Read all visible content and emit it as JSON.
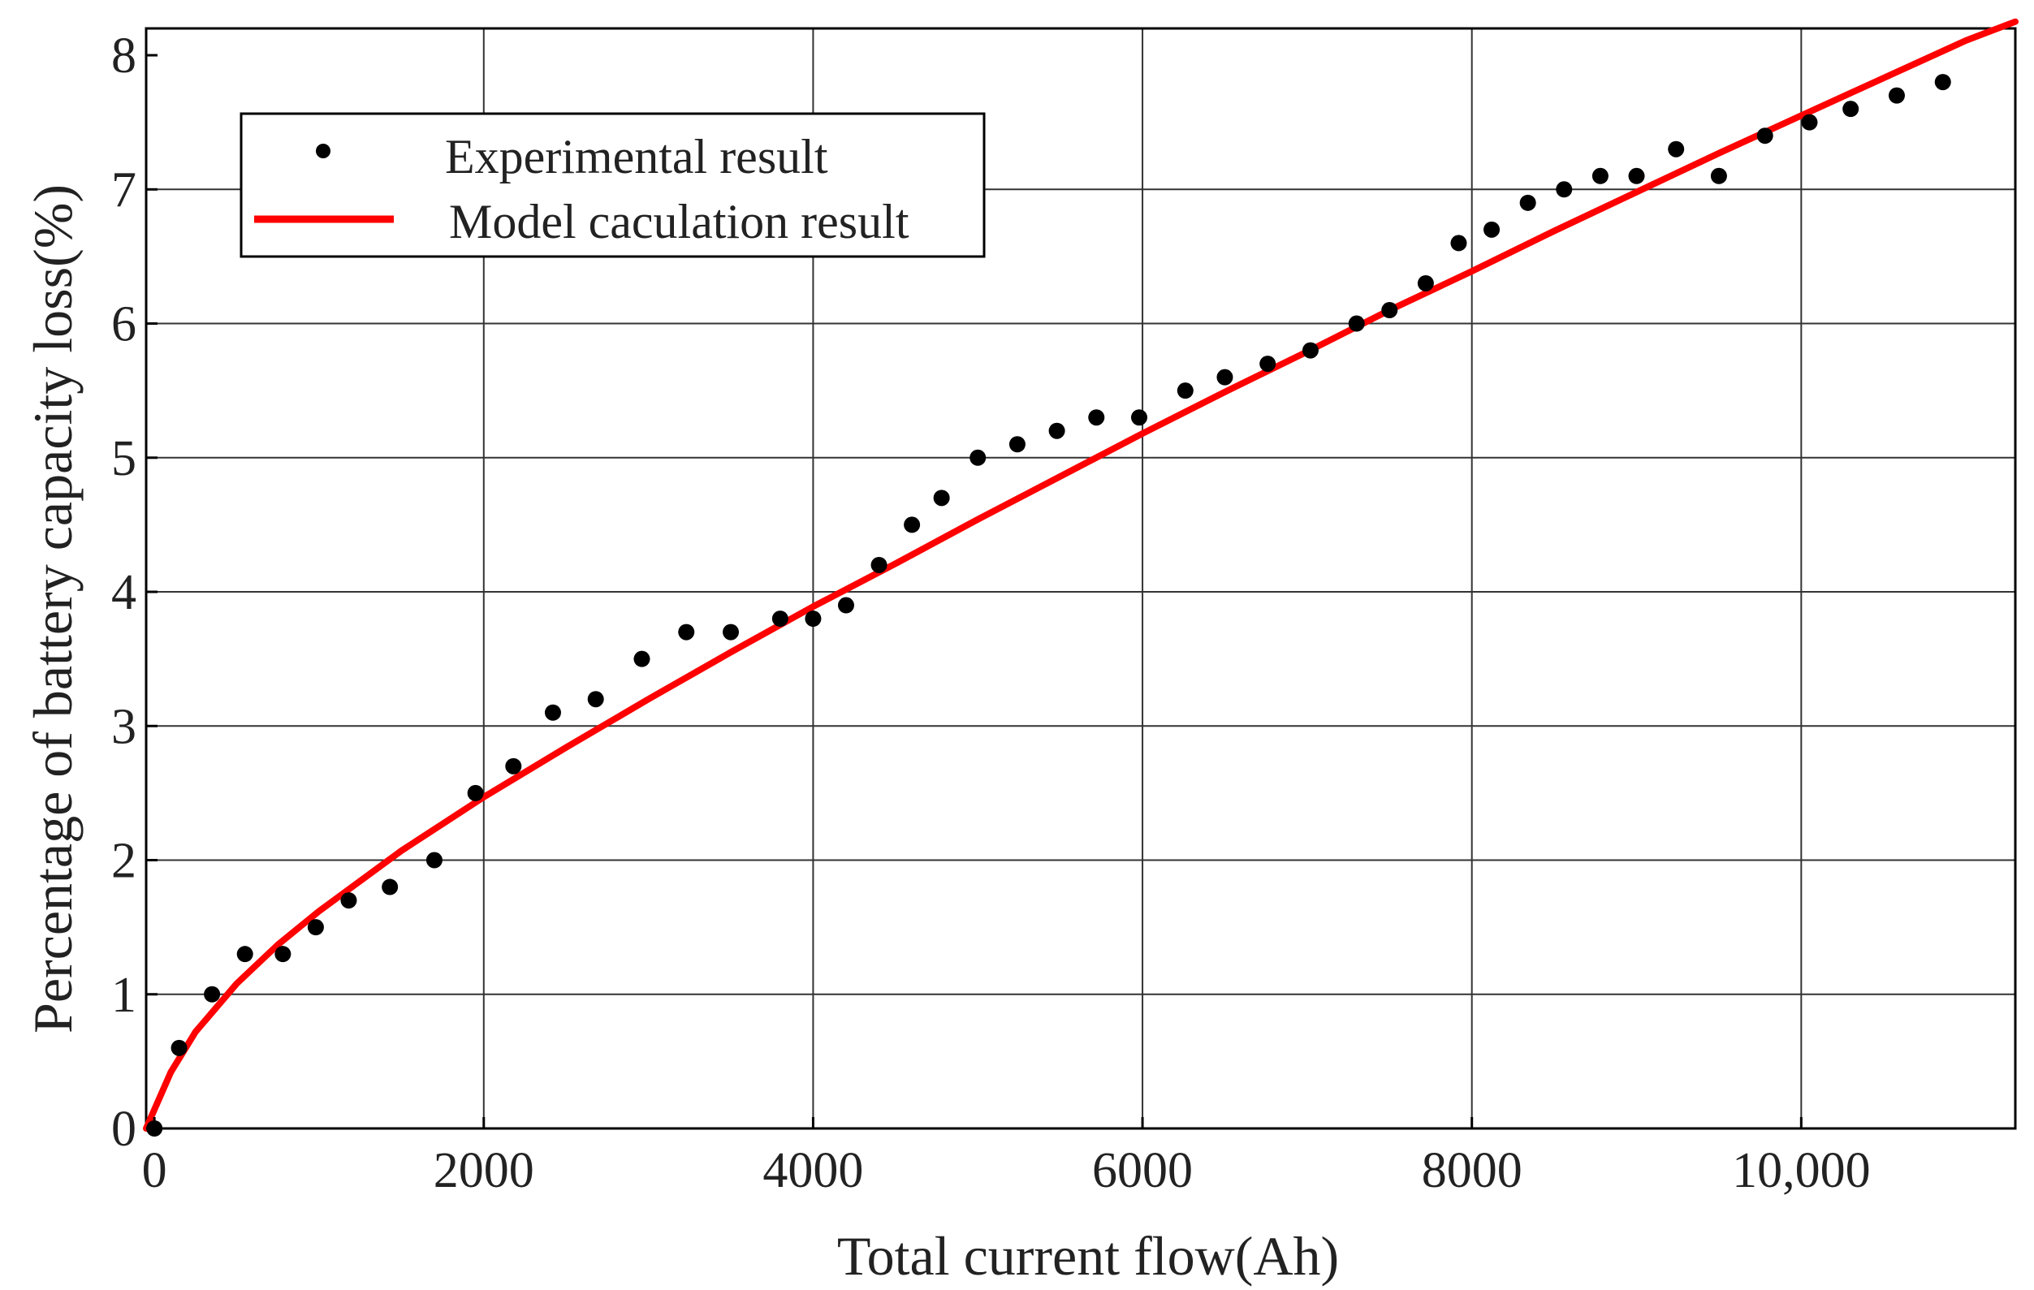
{
  "chart_data": {
    "type": "scatter",
    "xlabel": "Total current flow(Ah)",
    "ylabel": "Percentage of battery capacity loss(%)",
    "xlim": [
      -50,
      11300
    ],
    "ylim": [
      0,
      8.2
    ],
    "x_ticks": [
      0,
      2000,
      4000,
      6000,
      8000,
      10000
    ],
    "x_tick_labels": [
      "0",
      "2000",
      "4000",
      "6000",
      "8000",
      "10,000"
    ],
    "y_ticks": [
      0,
      1,
      2,
      3,
      4,
      5,
      6,
      7,
      8
    ],
    "y_tick_labels": [
      "0",
      "1",
      "2",
      "3",
      "4",
      "5",
      "6",
      "7",
      "8"
    ],
    "grid": true,
    "legend_position": "top-left",
    "series": [
      {
        "name": "Experimental result",
        "kind": "scatter",
        "color": "#000000",
        "x": [
          0,
          150,
          350,
          550,
          780,
          980,
          1180,
          1430,
          1700,
          1950,
          2180,
          2420,
          2680,
          2960,
          3230,
          3500,
          3800,
          4000,
          4200,
          4400,
          4600,
          4780,
          5000,
          5240,
          5480,
          5720,
          5980,
          6260,
          6500,
          6760,
          7020,
          7300,
          7500,
          7720,
          7920,
          8120,
          8340,
          8560,
          8780,
          9000,
          9240,
          9500,
          9780,
          10050,
          10300,
          10580,
          10860
        ],
        "y": [
          0,
          0.6,
          1.0,
          1.3,
          1.3,
          1.5,
          1.7,
          1.8,
          2.0,
          2.5,
          2.7,
          3.1,
          3.2,
          3.5,
          3.7,
          3.7,
          3.8,
          3.8,
          3.9,
          4.2,
          4.5,
          4.7,
          5.0,
          5.1,
          5.2,
          5.3,
          5.3,
          5.5,
          5.6,
          5.7,
          5.8,
          6.0,
          6.1,
          6.3,
          6.6,
          6.7,
          6.9,
          7.0,
          7.1,
          7.1,
          7.3,
          7.1,
          7.4,
          7.5,
          7.6,
          7.7,
          7.8
        ]
      },
      {
        "name": "Model caculation result",
        "kind": "line",
        "color": "#ff0000",
        "x": [
          -50,
          0,
          100,
          250,
          500,
          750,
          1000,
          1500,
          2000,
          2500,
          3000,
          3500,
          4000,
          4500,
          5000,
          5500,
          6000,
          6500,
          7000,
          7500,
          8000,
          8500,
          9000,
          9500,
          10000,
          10500,
          11000,
          11300
        ],
        "y": [
          0,
          0.14,
          0.42,
          0.72,
          1.08,
          1.37,
          1.62,
          2.07,
          2.47,
          2.84,
          3.2,
          3.55,
          3.89,
          4.21,
          4.54,
          4.86,
          5.18,
          5.49,
          5.79,
          6.1,
          6.39,
          6.69,
          6.98,
          7.27,
          7.55,
          7.83,
          8.11,
          8.25
        ]
      }
    ]
  }
}
